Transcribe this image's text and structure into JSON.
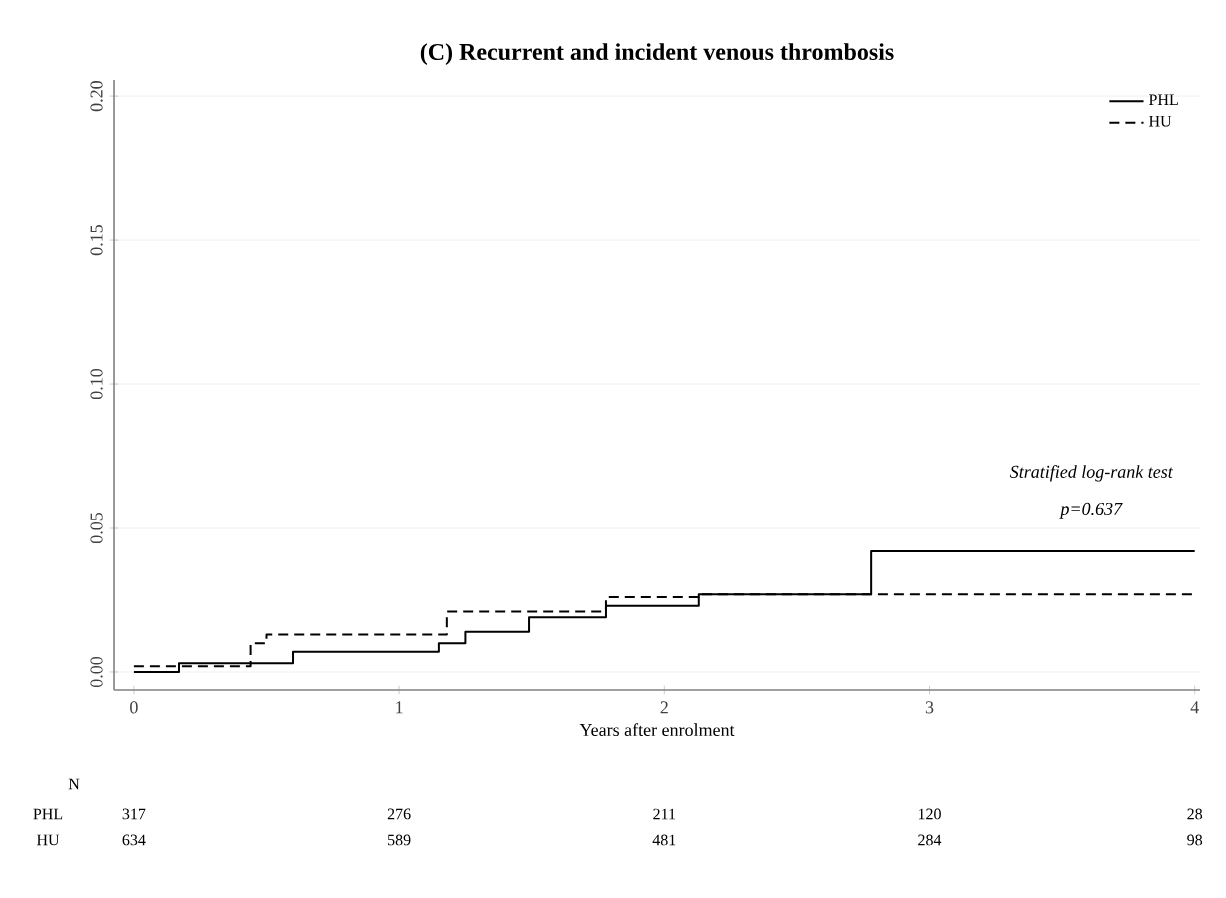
{
  "chart_data": {
    "type": "step",
    "title": "(C) Recurrent and incident venous thrombosis",
    "xlabel": "Years after enrolment",
    "xlim": [
      -0.075,
      4.02
    ],
    "ylim": [
      -0.00625,
      0.2056
    ],
    "xticks": [
      0,
      1,
      2,
      3,
      4
    ],
    "yticks": [
      {
        "value": 0,
        "label": "0.00"
      },
      {
        "value": 0.05,
        "label": "0.05"
      },
      {
        "value": 0.1,
        "label": "0.10"
      },
      {
        "value": 0.15,
        "label": "0.15"
      },
      {
        "value": 0.2,
        "label": "0.20"
      }
    ],
    "grid": "y",
    "legend": "top right",
    "series": [
      {
        "name": "PHL",
        "color": "#000000",
        "line_style": "solid",
        "x": [
          0,
          0.17,
          0.6,
          1.15,
          1.25,
          1.49,
          1.78,
          2.13,
          2.78,
          4.0
        ],
        "values": [
          0,
          0.003,
          0.007,
          0.01,
          0.014,
          0.019,
          0.023,
          0.027,
          0.042,
          0.042
        ]
      },
      {
        "name": "HU",
        "color": "#000000",
        "line_style": "dashed",
        "x": [
          0,
          0.44,
          0.5,
          1.18,
          1.78,
          2.13,
          4.0
        ],
        "values": [
          0.002,
          0.01,
          0.013,
          0.021,
          0.026,
          0.027,
          0.027
        ]
      }
    ],
    "annotations": [
      "Stratified log-rank test",
      "p=0.637",
      "N",
      "PHL",
      "317",
      "276",
      "211",
      "120",
      "28",
      "HU",
      "634",
      "589",
      "481",
      "284",
      "98"
    ]
  }
}
